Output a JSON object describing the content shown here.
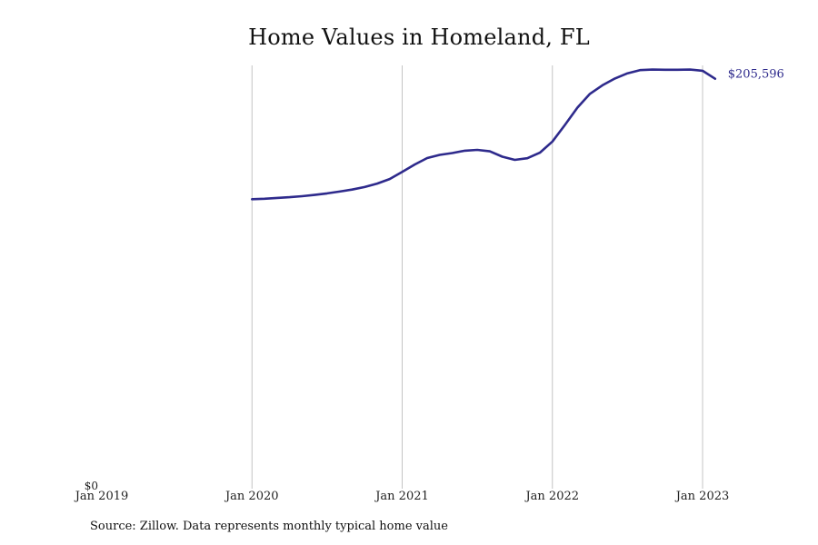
{
  "chart_data": {
    "type": "line",
    "title": "Home Values in Homeland, FL",
    "xlabel": "",
    "ylabel": "",
    "x_ticks": [
      "Jan 2019",
      "Jan 2020",
      "Jan 2021",
      "Jan 2022",
      "Jan 2023"
    ],
    "y_ticks": [
      "$0"
    ],
    "ylim": [
      0,
      210000
    ],
    "xlim": [
      "2019-01",
      "2023-03"
    ],
    "grid": "vertical at x ticks",
    "line_color": "#2e2a8c",
    "end_label": "$205,596",
    "series": [
      {
        "points": [
          {
            "x": "2020-01",
            "y": 145200
          },
          {
            "x": "2020-02",
            "y": 145400
          },
          {
            "x": "2020-03",
            "y": 145800
          },
          {
            "x": "2020-04",
            "y": 146200
          },
          {
            "x": "2020-05",
            "y": 146700
          },
          {
            "x": "2020-06",
            "y": 147300
          },
          {
            "x": "2020-07",
            "y": 148100
          },
          {
            "x": "2020-08",
            "y": 149000
          },
          {
            "x": "2020-09",
            "y": 150000
          },
          {
            "x": "2020-10",
            "y": 151300
          },
          {
            "x": "2020-11",
            "y": 153000
          },
          {
            "x": "2020-12",
            "y": 155300
          },
          {
            "x": "2021-01",
            "y": 158900
          },
          {
            "x": "2021-02",
            "y": 162600
          },
          {
            "x": "2021-03",
            "y": 165800
          },
          {
            "x": "2021-04",
            "y": 167400
          },
          {
            "x": "2021-05",
            "y": 168300
          },
          {
            "x": "2021-06",
            "y": 169500
          },
          {
            "x": "2021-07",
            "y": 169900
          },
          {
            "x": "2021-08",
            "y": 169200
          },
          {
            "x": "2021-09",
            "y": 166500
          },
          {
            "x": "2021-10",
            "y": 164900
          },
          {
            "x": "2021-11",
            "y": 165700
          },
          {
            "x": "2021-12",
            "y": 168500
          },
          {
            "x": "2022-01",
            "y": 174100
          },
          {
            "x": "2022-02",
            "y": 182400
          },
          {
            "x": "2022-03",
            "y": 191100
          },
          {
            "x": "2022-04",
            "y": 198000
          },
          {
            "x": "2022-05",
            "y": 202300
          },
          {
            "x": "2022-06",
            "y": 205700
          },
          {
            "x": "2022-07",
            "y": 208300
          },
          {
            "x": "2022-08",
            "y": 209900
          },
          {
            "x": "2022-09",
            "y": 210200
          },
          {
            "x": "2022-10",
            "y": 210100
          },
          {
            "x": "2022-11",
            "y": 210100
          },
          {
            "x": "2022-12",
            "y": 210200
          },
          {
            "x": "2023-01",
            "y": 209600
          },
          {
            "x": "2023-02",
            "y": 205596
          }
        ]
      }
    ]
  },
  "footer": {
    "source": "Source: Zillow. Data represents monthly typical home value"
  }
}
